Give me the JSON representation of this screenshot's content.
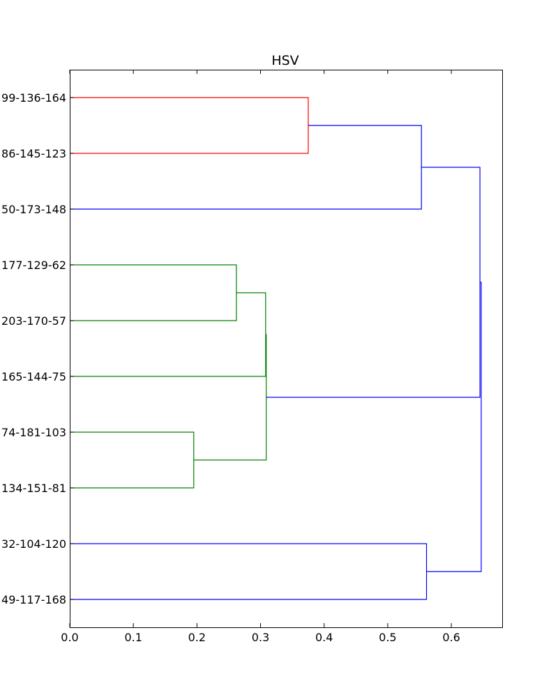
{
  "chart_data": {
    "type": "dendrogram",
    "title": "HSV",
    "xlabel": "",
    "ylabel": "",
    "xlim": [
      0.0,
      0.68
    ],
    "x_ticks": [
      "0.0",
      "0.1",
      "0.2",
      "0.3",
      "0.4",
      "0.5",
      "0.6"
    ],
    "x_tick_values": [
      0.0,
      0.1,
      0.2,
      0.3,
      0.4,
      0.5,
      0.6
    ],
    "orientation": "left",
    "leaves": [
      "99-136-164",
      "86-145-123",
      "50-173-148",
      "177-129-62",
      "203-170-57",
      "165-144-75",
      "74-181-103",
      "134-151-81",
      "32-104-120",
      "49-117-168"
    ],
    "links": [
      {
        "left": "leaf:0",
        "right": "leaf:1",
        "height": 0.375,
        "color": "#ff0000"
      },
      {
        "left": "link:0",
        "right": "leaf:2",
        "height": 0.553,
        "color": "#0000ff"
      },
      {
        "left": "leaf:3",
        "right": "leaf:4",
        "height": 0.262,
        "color": "#008000"
      },
      {
        "left": "link:2",
        "right": "leaf:5",
        "height": 0.308,
        "color": "#008000"
      },
      {
        "left": "leaf:6",
        "right": "leaf:7",
        "height": 0.195,
        "color": "#008000"
      },
      {
        "left": "link:3",
        "right": "link:4",
        "height": 0.309,
        "color": "#008000"
      },
      {
        "left": "link:1",
        "right": "link:5",
        "height": 0.645,
        "color": "#0000ff"
      },
      {
        "left": "leaf:8",
        "right": "leaf:9",
        "height": 0.561,
        "color": "#0000ff"
      },
      {
        "left": "link:6",
        "right": "link:7",
        "height": 0.647,
        "color": "#0000ff"
      }
    ]
  }
}
